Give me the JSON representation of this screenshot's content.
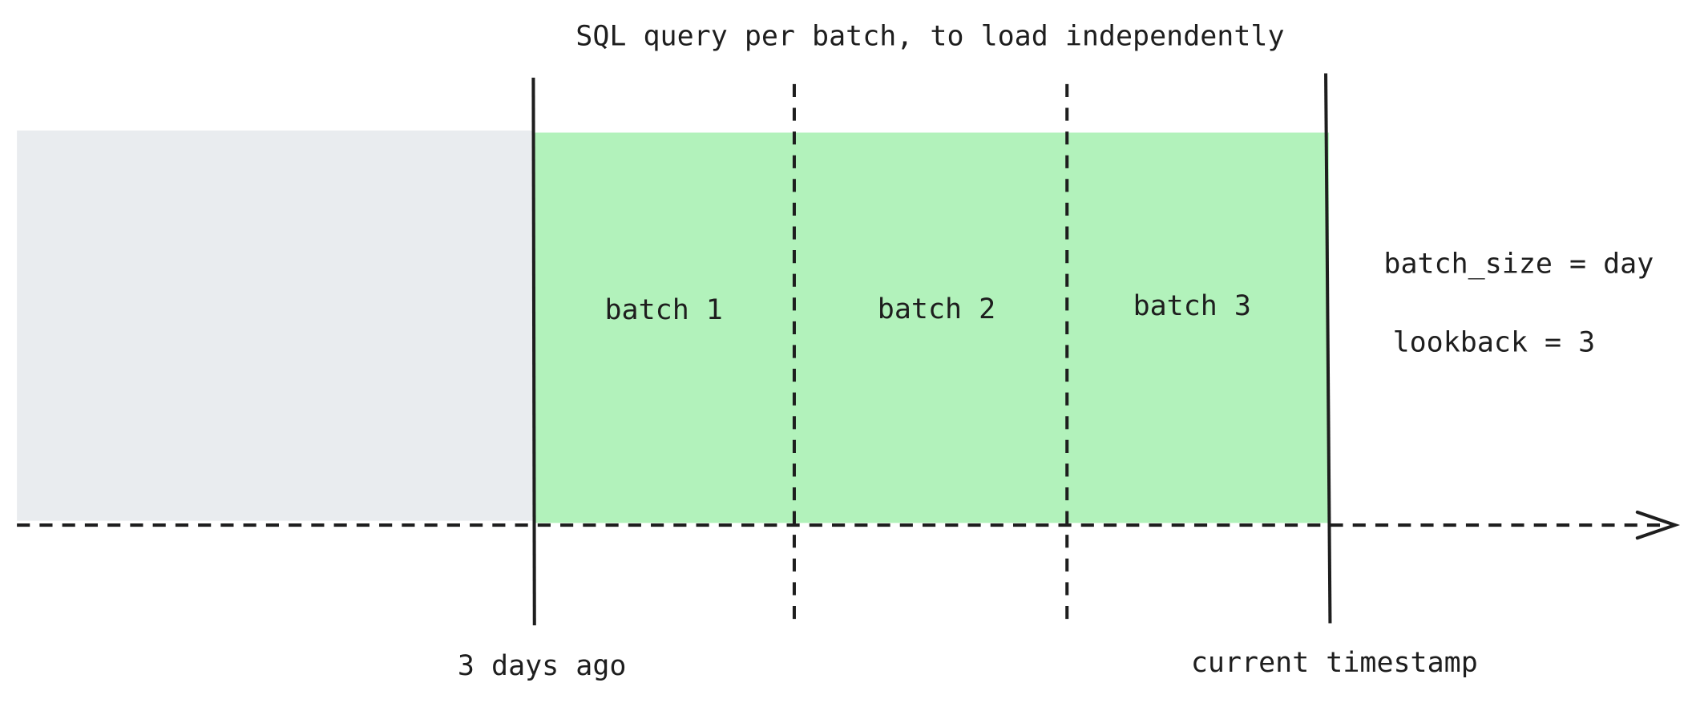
{
  "title": "SQL query per batch, to load independently",
  "batches": [
    {
      "label": "batch 1"
    },
    {
      "label": "batch 2"
    },
    {
      "label": "batch 3"
    }
  ],
  "params": {
    "batch_size": "batch_size = day",
    "lookback": "lookback = 3"
  },
  "timeline": {
    "start_label": "3 days ago",
    "end_label": "current timestamp"
  },
  "colors": {
    "history_fill": "#e9ecef",
    "batch_fill": "#b2f2bb",
    "stroke": "#1e1e1e"
  }
}
